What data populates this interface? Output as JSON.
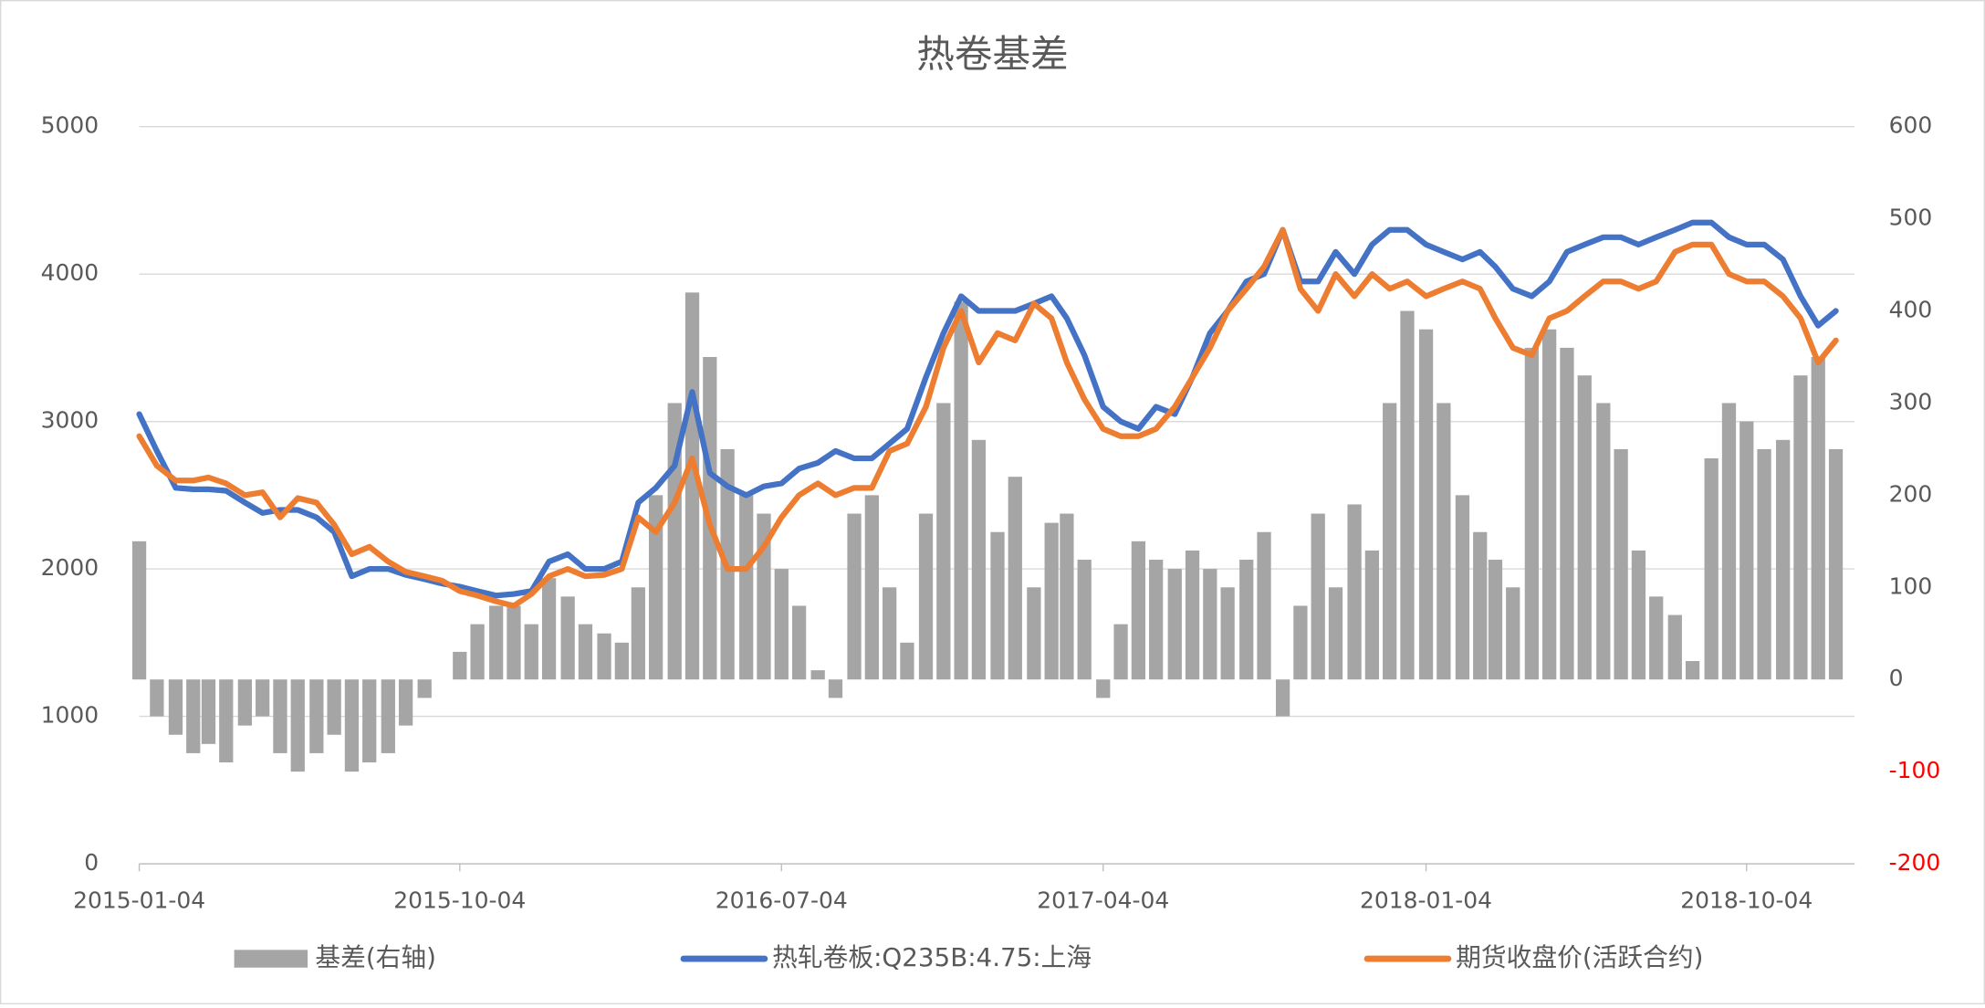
{
  "chart_data": {
    "type": "combo",
    "title": "热卷基差",
    "x": [
      "2015-01-04",
      "2015-01-19",
      "2015-02-04",
      "2015-02-19",
      "2015-03-04",
      "2015-03-19",
      "2015-04-04",
      "2015-04-19",
      "2015-05-04",
      "2015-05-19",
      "2015-06-04",
      "2015-06-19",
      "2015-07-04",
      "2015-07-19",
      "2015-08-04",
      "2015-08-19",
      "2015-09-04",
      "2015-09-19",
      "2015-10-04",
      "2015-10-19",
      "2015-11-04",
      "2015-11-19",
      "2015-12-04",
      "2015-12-19",
      "2016-01-04",
      "2016-01-19",
      "2016-02-04",
      "2016-02-19",
      "2016-03-04",
      "2016-03-19",
      "2016-04-04",
      "2016-04-19",
      "2016-05-04",
      "2016-05-19",
      "2016-06-04",
      "2016-06-19",
      "2016-07-04",
      "2016-07-19",
      "2016-08-04",
      "2016-08-19",
      "2016-09-04",
      "2016-09-19",
      "2016-10-04",
      "2016-10-19",
      "2016-11-04",
      "2016-11-19",
      "2016-12-04",
      "2016-12-19",
      "2017-01-04",
      "2017-01-19",
      "2017-02-04",
      "2017-02-19",
      "2017-03-04",
      "2017-03-19",
      "2017-04-04",
      "2017-04-19",
      "2017-05-04",
      "2017-05-19",
      "2017-06-04",
      "2017-06-19",
      "2017-07-04",
      "2017-07-19",
      "2017-08-04",
      "2017-08-19",
      "2017-09-04",
      "2017-09-19",
      "2017-10-04",
      "2017-10-19",
      "2017-11-04",
      "2017-11-19",
      "2017-12-04",
      "2017-12-19",
      "2018-01-04",
      "2018-01-19",
      "2018-02-04",
      "2018-02-19",
      "2018-03-04",
      "2018-03-19",
      "2018-04-04",
      "2018-04-19",
      "2018-05-04",
      "2018-05-19",
      "2018-06-04",
      "2018-06-19",
      "2018-07-04",
      "2018-07-19",
      "2018-08-04",
      "2018-08-19",
      "2018-09-04",
      "2018-09-19",
      "2018-10-04",
      "2018-10-19",
      "2018-11-04",
      "2018-11-19",
      "2018-12-04",
      "2018-12-19"
    ],
    "xlim": [
      "2015-01-04",
      "2019-01-04"
    ],
    "xticks": [
      "2015-01-04",
      "2015-10-04",
      "2016-07-04",
      "2017-04-04",
      "2018-01-04",
      "2018-10-04"
    ],
    "ylim": [
      0,
      5000
    ],
    "yticks": [
      0,
      1000,
      2000,
      3000,
      4000,
      5000
    ],
    "y2lim": [
      -200,
      600
    ],
    "y2ticks": [
      -200,
      -100,
      0,
      100,
      200,
      300,
      400,
      500,
      600
    ],
    "y2_negative_label_color": "#ff0000",
    "grid": true,
    "legend": "bottom",
    "series": [
      {
        "name": "基差(右轴)",
        "type": "bar",
        "axis": "y2",
        "color": "#a5a5a5",
        "values": [
          150,
          -40,
          -60,
          -80,
          -70,
          -90,
          -50,
          -40,
          -80,
          -100,
          -80,
          -60,
          -100,
          -90,
          -80,
          -50,
          -20,
          0,
          30,
          60,
          80,
          80,
          60,
          110,
          90,
          60,
          50,
          40,
          100,
          200,
          300,
          420,
          350,
          250,
          200,
          180,
          120,
          80,
          10,
          -20,
          180,
          200,
          100,
          40,
          180,
          300,
          410,
          260,
          160,
          220,
          100,
          170,
          180,
          130,
          -20,
          60,
          150,
          130,
          120,
          140,
          120,
          100,
          130,
          160,
          -40,
          80,
          180,
          100,
          190,
          140,
          300,
          400,
          380,
          300,
          200,
          160,
          130,
          100,
          360,
          380,
          360,
          330,
          300,
          250,
          140,
          90,
          70,
          20,
          240,
          300,
          280,
          250,
          260,
          330,
          350,
          250
        ]
      },
      {
        "name": "热轧卷板:Q235B:4.75:上海",
        "type": "line",
        "color": "#4472c4",
        "values": [
          3050,
          2800,
          2550,
          2540,
          2540,
          2530,
          2450,
          2380,
          2400,
          2400,
          2350,
          2250,
          1950,
          2000,
          2000,
          1960,
          1930,
          1900,
          1880,
          1850,
          1820,
          1830,
          1850,
          2050,
          2100,
          2000,
          2000,
          2050,
          2450,
          2550,
          2700,
          3200,
          2650,
          2560,
          2500,
          2560,
          2580,
          2680,
          2720,
          2800,
          2750,
          2750,
          2850,
          2950,
          3300,
          3600,
          3850,
          3750,
          3750,
          3750,
          3800,
          3850,
          3700,
          3450,
          3100,
          3000,
          2950,
          3100,
          3050,
          3300,
          3600,
          3750,
          3950,
          4000,
          4300,
          3950,
          3950,
          4150,
          4000,
          4200,
          4300,
          4300,
          4200,
          4150,
          4100,
          4150,
          4050,
          3900,
          3850,
          3950,
          4150,
          4200,
          4250,
          4250,
          4200,
          4250,
          4300,
          4350,
          4350,
          4250,
          4200,
          4200,
          4100,
          3850,
          3650,
          3750
        ]
      },
      {
        "name": "期货收盘价(活跃合约)",
        "type": "line",
        "color": "#ed7d31",
        "values": [
          2900,
          2700,
          2600,
          2600,
          2620,
          2580,
          2500,
          2520,
          2350,
          2480,
          2450,
          2300,
          2100,
          2150,
          2050,
          1980,
          1950,
          1920,
          1850,
          1820,
          1780,
          1750,
          1830,
          1950,
          2000,
          1950,
          1960,
          2000,
          2350,
          2250,
          2450,
          2750,
          2300,
          2000,
          2000,
          2150,
          2350,
          2500,
          2580,
          2500,
          2550,
          2550,
          2800,
          2850,
          3100,
          3500,
          3750,
          3400,
          3600,
          3550,
          3800,
          3700,
          3400,
          3150,
          2950,
          2900,
          2900,
          2950,
          3100,
          3300,
          3500,
          3750,
          3900,
          4050,
          4300,
          3900,
          3750,
          4000,
          3850,
          4000,
          3900,
          3950,
          3850,
          3900,
          3950,
          3900,
          3700,
          3500,
          3450,
          3700,
          3750,
          3850,
          3950,
          3950,
          3900,
          3950,
          4150,
          4200,
          4200,
          4000,
          3950,
          3950,
          3850,
          3700,
          3400,
          3550
        ]
      }
    ]
  }
}
